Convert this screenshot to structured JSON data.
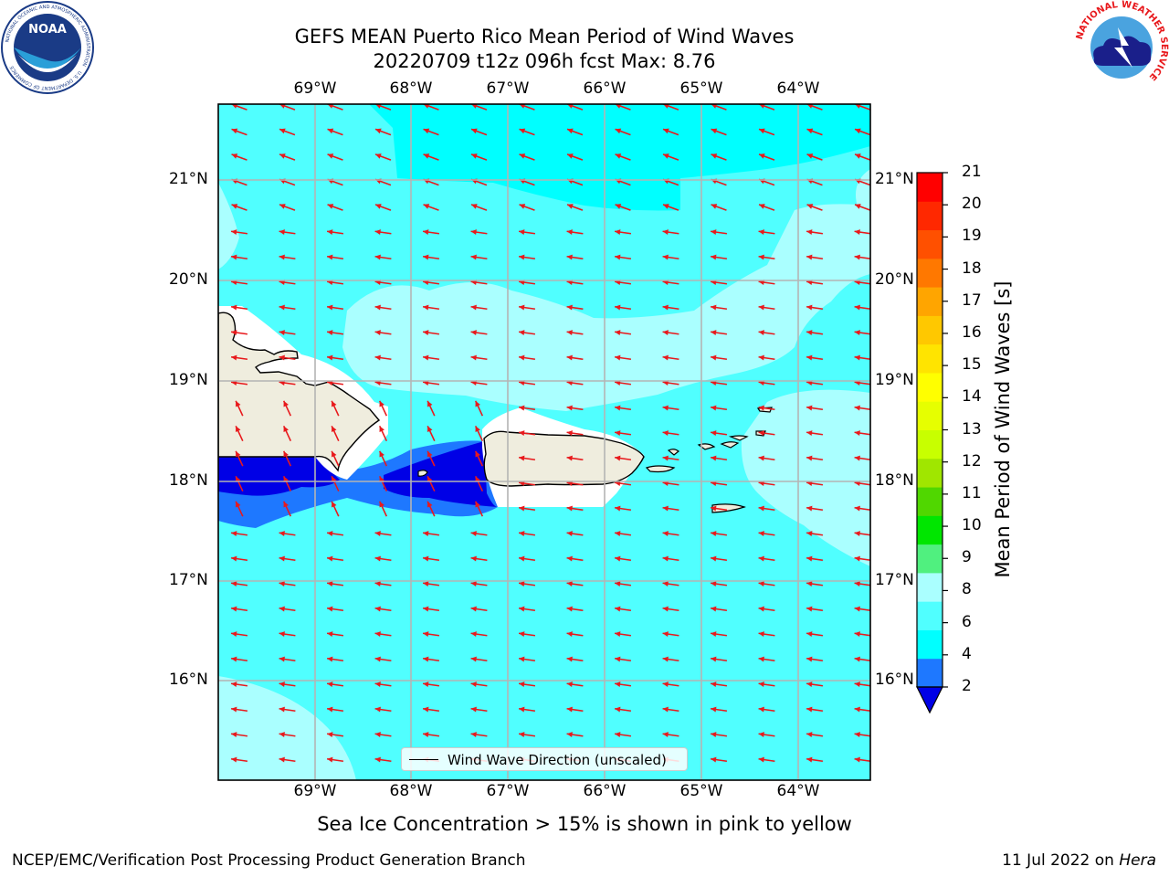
{
  "header": {
    "title_line1": "GEFS MEAN Puerto Rico Mean Period of Wind Waves",
    "title_line2": "20220709 t12z 096h fcst   Max: 8.76"
  },
  "logos": {
    "noaa_text": "NOAA",
    "noaa_ring": "NATIONAL OCEANIC AND ATMOSPHERIC ADMINISTRATION",
    "noaa_ring_bottom": "U.S. DEPARTMENT OF COMMERCE",
    "nws_ring": "NATIONAL WEATHER SERVICE"
  },
  "map": {
    "lon_labels": [
      "69°W",
      "68°W",
      "67°W",
      "66°W",
      "65°W",
      "64°W"
    ],
    "lat_labels": [
      "21°N",
      "20°N",
      "19°N",
      "18°N",
      "17°N",
      "16°N"
    ],
    "legend_label": "Wind Wave Direction (unscaled)",
    "arrow_color": "#e8191c",
    "land_color": "#efedde",
    "grid_color": "#b4b4b4"
  },
  "colorbar": {
    "title": "Mean Period of Wind Waves [s]",
    "ticks": [
      "21",
      "20",
      "19",
      "18",
      "17",
      "16",
      "15",
      "14",
      "13",
      "12",
      "11",
      "10",
      "9",
      "8",
      "6",
      "4",
      "2"
    ],
    "colors": [
      "#0000e6",
      "#1e78ff",
      "#00ffff",
      "#50ffff",
      "#aaffff",
      "#50f07f",
      "#00e600",
      "#50d700",
      "#a0e600",
      "#c8ff00",
      "#e6ff00",
      "#ffff00",
      "#ffe400",
      "#ffc800",
      "#ffa500",
      "#ff7800",
      "#ff5000",
      "#ff2800",
      "#ff0000"
    ]
  },
  "footer": {
    "note": "Sea Ice Concentration > 15% is shown in pink to yellow",
    "left": "NCEP/EMC/Verification Post Processing Product Generation Branch",
    "right_date": "11 Jul 2022 on ",
    "right_host": "Hera"
  }
}
